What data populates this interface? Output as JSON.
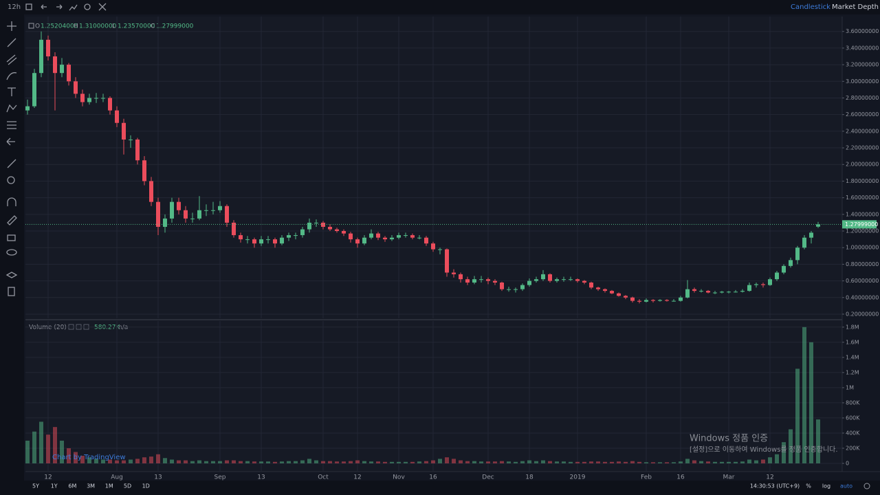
{
  "toolbar": {
    "interval": "12h",
    "tabs": [
      "Candlestick",
      "Market Depth"
    ]
  },
  "chart_data": {
    "type": "candlestick",
    "ohlc_legend": [
      {
        "key": "O",
        "value": "1.25204000"
      },
      {
        "key": "H",
        "value": "1.31000000"
      },
      {
        "key": "L",
        "value": "1.23570000"
      },
      {
        "key": "C",
        "value": "1.27999000"
      }
    ],
    "categories": [
      null,
      null,
      null,
      "12",
      null,
      null,
      null,
      null,
      null,
      null,
      null,
      null,
      null,
      "Aug",
      null,
      null,
      null,
      null,
      null,
      "13",
      null,
      null,
      null,
      null,
      null,
      null,
      null,
      null,
      "Sep",
      null,
      null,
      null,
      null,
      null,
      "13",
      null,
      null,
      null,
      null,
      null,
      null,
      null,
      null,
      "Oct",
      null,
      null,
      null,
      null,
      "12",
      null,
      null,
      null,
      null,
      null,
      "Nov",
      null,
      null,
      null,
      null,
      "16",
      null,
      null,
      null,
      null,
      null,
      null,
      null,
      "Dec",
      null,
      null,
      null,
      null,
      null,
      "18",
      null,
      null,
      null,
      null,
      null,
      null,
      "2019",
      null,
      null,
      null,
      null,
      null,
      null,
      null,
      null,
      null,
      "Feb",
      null,
      null,
      null,
      null,
      "16",
      null,
      null,
      null,
      null,
      null,
      null,
      "Mar",
      null,
      null,
      null,
      null,
      null,
      "12",
      null,
      null,
      null,
      null,
      null,
      null,
      null
    ],
    "ohlc": [
      [
        2.65,
        2.78,
        2.6,
        2.7
      ],
      [
        2.7,
        3.15,
        2.68,
        3.1
      ],
      [
        3.1,
        3.6,
        3.05,
        3.5
      ],
      [
        3.5,
        3.55,
        3.25,
        3.3
      ],
      [
        3.3,
        3.35,
        2.65,
        3.1
      ],
      [
        3.1,
        3.28,
        3.05,
        3.2
      ],
      [
        3.2,
        3.22,
        2.95,
        3.0
      ],
      [
        3.0,
        3.05,
        2.8,
        2.85
      ],
      [
        2.85,
        2.9,
        2.7,
        2.75
      ],
      [
        2.75,
        2.85,
        2.72,
        2.8
      ],
      [
        2.8,
        2.86,
        2.74,
        2.8
      ],
      [
        2.8,
        2.85,
        2.75,
        2.8
      ],
      [
        2.8,
        2.82,
        2.6,
        2.65
      ],
      [
        2.65,
        2.7,
        2.45,
        2.5
      ],
      [
        2.5,
        2.55,
        2.12,
        2.3
      ],
      [
        2.3,
        2.35,
        2.2,
        2.3
      ],
      [
        2.3,
        2.32,
        2.0,
        2.05
      ],
      [
        2.05,
        2.1,
        1.75,
        1.8
      ],
      [
        1.8,
        1.85,
        1.5,
        1.55
      ],
      [
        1.55,
        1.6,
        1.15,
        1.25
      ],
      [
        1.25,
        1.4,
        1.18,
        1.35
      ],
      [
        1.35,
        1.6,
        1.3,
        1.55
      ],
      [
        1.55,
        1.6,
        1.4,
        1.45
      ],
      [
        1.45,
        1.5,
        1.3,
        1.35
      ],
      [
        1.35,
        1.42,
        1.3,
        1.35
      ],
      [
        1.35,
        1.62,
        1.33,
        1.45
      ],
      [
        1.45,
        1.52,
        1.38,
        1.45
      ],
      [
        1.45,
        1.55,
        1.4,
        1.45
      ],
      [
        1.45,
        1.56,
        1.42,
        1.5
      ],
      [
        1.5,
        1.52,
        1.25,
        1.3
      ],
      [
        1.3,
        1.33,
        1.12,
        1.15
      ],
      [
        1.15,
        1.18,
        1.06,
        1.1
      ],
      [
        1.1,
        1.14,
        1.05,
        1.1
      ],
      [
        1.1,
        1.12,
        1.0,
        1.05
      ],
      [
        1.05,
        1.14,
        1.02,
        1.1
      ],
      [
        1.1,
        1.14,
        1.05,
        1.1
      ],
      [
        1.1,
        1.12,
        1.0,
        1.05
      ],
      [
        1.05,
        1.15,
        1.03,
        1.12
      ],
      [
        1.12,
        1.18,
        1.08,
        1.15
      ],
      [
        1.15,
        1.18,
        1.1,
        1.15
      ],
      [
        1.15,
        1.25,
        1.12,
        1.22
      ],
      [
        1.22,
        1.35,
        1.18,
        1.3
      ],
      [
        1.3,
        1.34,
        1.25,
        1.3
      ],
      [
        1.3,
        1.32,
        1.22,
        1.25
      ],
      [
        1.25,
        1.28,
        1.2,
        1.22
      ],
      [
        1.22,
        1.24,
        1.18,
        1.2
      ],
      [
        1.2,
        1.22,
        1.14,
        1.17
      ],
      [
        1.17,
        1.19,
        1.06,
        1.1
      ],
      [
        1.1,
        1.12,
        1.0,
        1.05
      ],
      [
        1.05,
        1.15,
        1.03,
        1.12
      ],
      [
        1.12,
        1.22,
        1.1,
        1.17
      ],
      [
        1.17,
        1.19,
        1.09,
        1.12
      ],
      [
        1.12,
        1.14,
        1.07,
        1.1
      ],
      [
        1.1,
        1.15,
        1.08,
        1.12
      ],
      [
        1.12,
        1.18,
        1.1,
        1.15
      ],
      [
        1.15,
        1.18,
        1.12,
        1.15
      ],
      [
        1.15,
        1.17,
        1.1,
        1.12
      ],
      [
        1.12,
        1.15,
        1.1,
        1.12
      ],
      [
        1.12,
        1.14,
        1.02,
        1.05
      ],
      [
        1.05,
        1.07,
        0.95,
        0.98
      ],
      [
        0.98,
        1.0,
        0.92,
        0.98
      ],
      [
        0.98,
        0.99,
        0.65,
        0.7
      ],
      [
        0.7,
        0.74,
        0.64,
        0.68
      ],
      [
        0.68,
        0.7,
        0.58,
        0.62
      ],
      [
        0.62,
        0.65,
        0.55,
        0.58
      ],
      [
        0.58,
        0.66,
        0.56,
        0.62
      ],
      [
        0.62,
        0.66,
        0.58,
        0.62
      ],
      [
        0.62,
        0.64,
        0.56,
        0.6
      ],
      [
        0.6,
        0.62,
        0.55,
        0.58
      ],
      [
        0.58,
        0.59,
        0.48,
        0.5
      ],
      [
        0.5,
        0.53,
        0.47,
        0.5
      ],
      [
        0.5,
        0.52,
        0.46,
        0.5
      ],
      [
        0.5,
        0.57,
        0.48,
        0.55
      ],
      [
        0.55,
        0.63,
        0.53,
        0.6
      ],
      [
        0.6,
        0.65,
        0.58,
        0.62
      ],
      [
        0.62,
        0.73,
        0.6,
        0.68
      ],
      [
        0.68,
        0.69,
        0.58,
        0.6
      ],
      [
        0.6,
        0.64,
        0.58,
        0.62
      ],
      [
        0.62,
        0.65,
        0.59,
        0.62
      ],
      [
        0.62,
        0.65,
        0.6,
        0.62
      ],
      [
        0.62,
        0.63,
        0.58,
        0.6
      ],
      [
        0.6,
        0.61,
        0.56,
        0.58
      ],
      [
        0.58,
        0.59,
        0.5,
        0.52
      ],
      [
        0.52,
        0.53,
        0.48,
        0.5
      ],
      [
        0.5,
        0.51,
        0.46,
        0.48
      ],
      [
        0.48,
        0.49,
        0.44,
        0.45
      ],
      [
        0.45,
        0.46,
        0.41,
        0.42
      ],
      [
        0.42,
        0.43,
        0.38,
        0.4
      ],
      [
        0.4,
        0.41,
        0.34,
        0.36
      ],
      [
        0.36,
        0.38,
        0.33,
        0.35
      ],
      [
        0.35,
        0.39,
        0.34,
        0.37
      ],
      [
        0.37,
        0.38,
        0.34,
        0.36
      ],
      [
        0.36,
        0.38,
        0.35,
        0.37
      ],
      [
        0.37,
        0.38,
        0.35,
        0.36
      ],
      [
        0.36,
        0.38,
        0.35,
        0.36
      ],
      [
        0.36,
        0.42,
        0.35,
        0.4
      ],
      [
        0.4,
        0.61,
        0.39,
        0.5
      ],
      [
        0.5,
        0.52,
        0.46,
        0.48
      ],
      [
        0.48,
        0.5,
        0.46,
        0.48
      ],
      [
        0.48,
        0.49,
        0.45,
        0.46
      ],
      [
        0.46,
        0.48,
        0.44,
        0.46
      ],
      [
        0.46,
        0.48,
        0.45,
        0.47
      ],
      [
        0.47,
        0.48,
        0.45,
        0.47
      ],
      [
        0.47,
        0.49,
        0.46,
        0.47
      ],
      [
        0.47,
        0.5,
        0.46,
        0.48
      ],
      [
        0.48,
        0.58,
        0.47,
        0.55
      ],
      [
        0.55,
        0.58,
        0.52,
        0.56
      ],
      [
        0.56,
        0.58,
        0.52,
        0.55
      ],
      [
        0.55,
        0.64,
        0.54,
        0.62
      ],
      [
        0.62,
        0.72,
        0.6,
        0.7
      ],
      [
        0.7,
        0.8,
        0.68,
        0.78
      ],
      [
        0.78,
        0.88,
        0.76,
        0.85
      ],
      [
        0.85,
        1.02,
        0.8,
        1.0
      ],
      [
        1.0,
        1.15,
        0.98,
        1.12
      ],
      [
        1.12,
        1.2,
        1.05,
        1.18
      ],
      [
        1.25204,
        1.31,
        1.2357,
        1.27999
      ]
    ],
    "up_color": "#53b987",
    "down_color": "#eb4d5c",
    "ylim": [
      0.15,
      3.73
    ],
    "yticks": [
      {
        "value": 0.2,
        "label": "0.20000000"
      },
      {
        "value": 0.4,
        "label": "0.40000000"
      },
      {
        "value": 0.6,
        "label": "0.60000000"
      },
      {
        "value": 0.8,
        "label": "0.80000000"
      },
      {
        "value": 1.0,
        "label": "1.00000000"
      },
      {
        "value": 1.2,
        "label": "1.20000000"
      },
      {
        "value": 1.4,
        "label": "1.40000000"
      },
      {
        "value": 1.6,
        "label": "1.60000000"
      },
      {
        "value": 1.8,
        "label": "1.80000000"
      },
      {
        "value": 2.0,
        "label": "2.00000000"
      },
      {
        "value": 2.2,
        "label": "2.20000000"
      },
      {
        "value": 2.4,
        "label": "2.40000000"
      },
      {
        "value": 2.6,
        "label": "2.60000000"
      },
      {
        "value": 2.8,
        "label": "2.80000000"
      },
      {
        "value": 3.0,
        "label": "3.00000000"
      },
      {
        "value": 3.2,
        "label": "3.20000000"
      },
      {
        "value": 3.4,
        "label": "3.40000000"
      },
      {
        "value": 3.6,
        "label": "3.60000000"
      }
    ],
    "last_price": {
      "value": 1.27999,
      "label": "1.27999000"
    },
    "grid": true,
    "volume": {
      "title": "Volume (20)",
      "last": "580.27K",
      "ma": "n/a",
      "values": [
        300000,
        420000,
        550000,
        380000,
        480000,
        300000,
        200000,
        150000,
        100000,
        80000,
        60000,
        50000,
        50000,
        40000,
        40000,
        50000,
        60000,
        80000,
        90000,
        120000,
        70000,
        50000,
        40000,
        40000,
        30000,
        40000,
        30000,
        30000,
        30000,
        40000,
        40000,
        30000,
        30000,
        25000,
        25000,
        25000,
        20000,
        25000,
        30000,
        30000,
        40000,
        60000,
        40000,
        30000,
        30000,
        25000,
        25000,
        30000,
        40000,
        30000,
        25000,
        25000,
        20000,
        20000,
        20000,
        20000,
        20000,
        25000,
        30000,
        40000,
        60000,
        80000,
        60000,
        40000,
        30000,
        30000,
        25000,
        25000,
        25000,
        30000,
        25000,
        20000,
        30000,
        40000,
        30000,
        40000,
        30000,
        25000,
        25000,
        20000,
        20000,
        20000,
        25000,
        25000,
        20000,
        20000,
        25000,
        20000,
        30000,
        20000,
        15000,
        15000,
        15000,
        15000,
        15000,
        25000,
        60000,
        40000,
        30000,
        25000,
        20000,
        20000,
        20000,
        20000,
        25000,
        50000,
        40000,
        50000,
        80000,
        120000,
        280000,
        450000,
        1250000,
        1800000,
        1600000,
        580270
      ],
      "ylim": [
        -100000,
        1880000
      ],
      "yticks": [
        0,
        {
          "value": 200000,
          "label": "200K"
        },
        {
          "value": 400000,
          "label": "400K"
        },
        {
          "value": 600000,
          "label": "600K"
        },
        {
          "value": 800000,
          "label": "800K"
        },
        {
          "value": 1000000,
          "label": "1M"
        },
        {
          "value": 1200000,
          "label": "1.2M"
        },
        {
          "value": 1400000,
          "label": "1.4M"
        },
        {
          "value": 1600000,
          "label": "1.6M"
        },
        {
          "value": 1800000,
          "label": "1.8M"
        }
      ]
    }
  },
  "branding": "Chart by TradingView",
  "watermark": {
    "title": "Windows 정품 인증",
    "text": "[설정]으로 이동하여 Windows를 정품 인증합니다."
  },
  "footer": {
    "ranges": [
      "5Y",
      "1Y",
      "6M",
      "3M",
      "1M",
      "5D",
      "1D"
    ],
    "time": "14:30:53 (UTC+9)",
    "options": [
      "%",
      "log",
      "auto"
    ]
  }
}
